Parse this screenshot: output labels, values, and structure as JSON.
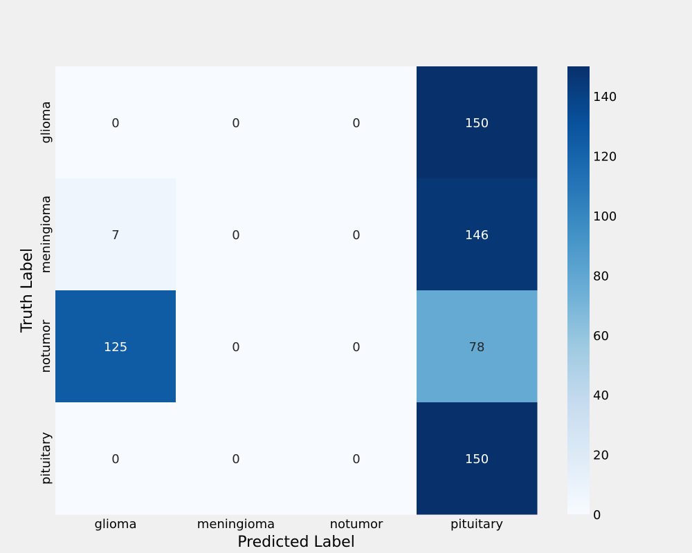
{
  "chart_data": {
    "type": "heatmap",
    "title": "",
    "xlabel": "Predicted Label",
    "ylabel": "Truth Label",
    "x_categories": [
      "glioma",
      "meningioma",
      "notumor",
      "pituitary"
    ],
    "y_categories": [
      "glioma",
      "meningioma",
      "notumor",
      "pituitary"
    ],
    "values": [
      [
        0,
        0,
        0,
        150
      ],
      [
        7,
        0,
        0,
        146
      ],
      [
        125,
        0,
        0,
        78
      ],
      [
        0,
        0,
        0,
        150
      ]
    ],
    "colormap": "Blues",
    "color_low": "#f7fbff",
    "color_high": "#08306b",
    "vmin": 0,
    "vmax": 150,
    "colorbar_ticks": [
      0,
      20,
      40,
      60,
      80,
      100,
      120,
      140
    ],
    "annotations": true,
    "background_color": "#f0f0f0"
  }
}
